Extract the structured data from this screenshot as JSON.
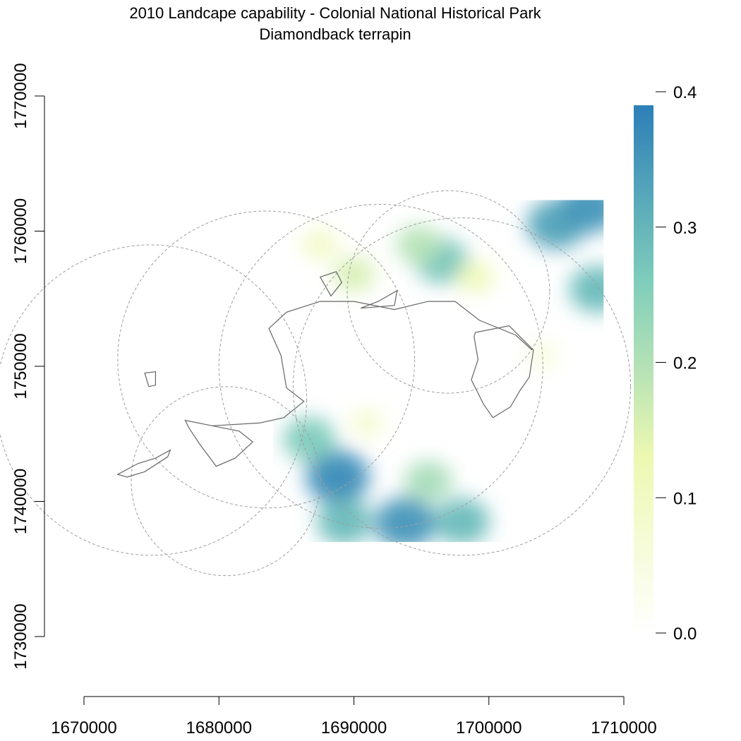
{
  "title": {
    "line1": "2010 Landcape capability - Colonial National Historical Park",
    "line2": "Diamondback terrapin"
  },
  "map_data": {
    "x_axis": {
      "min": 1670000,
      "max": 1710000,
      "ticks": [
        "1670000",
        "1680000",
        "1690000",
        "1700000",
        "1710000"
      ]
    },
    "y_axis": {
      "min": 1730000,
      "max": 1770000,
      "ticks": [
        "1730000",
        "1740000",
        "1750000",
        "1760000",
        "1770000"
      ]
    },
    "raster_extent": {
      "x": [
        1684000,
        1708500
      ],
      "y": [
        1737000,
        1762300
      ]
    },
    "legend": {
      "ticks": [
        "0.0",
        "0.1",
        "0.2",
        "0.3",
        "0.4"
      ],
      "min": 0.0,
      "max": 0.4,
      "top_value": 0.39,
      "colors": [
        "#ffffff",
        "#edf8b1",
        "#7fcdbb",
        "#2c7fb8"
      ]
    },
    "hotspots": [
      {
        "x": 1688800,
        "y": 1741800,
        "value": 0.38
      },
      {
        "x": 1686700,
        "y": 1744600,
        "value": 0.27
      },
      {
        "x": 1693800,
        "y": 1738400,
        "value": 0.36
      },
      {
        "x": 1689300,
        "y": 1738500,
        "value": 0.3
      },
      {
        "x": 1695500,
        "y": 1741500,
        "value": 0.22
      },
      {
        "x": 1698000,
        "y": 1738500,
        "value": 0.3
      },
      {
        "x": 1696500,
        "y": 1757800,
        "value": 0.28
      },
      {
        "x": 1694800,
        "y": 1759000,
        "value": 0.2
      },
      {
        "x": 1705000,
        "y": 1760500,
        "value": 0.34
      },
      {
        "x": 1707500,
        "y": 1761800,
        "value": 0.36
      },
      {
        "x": 1708000,
        "y": 1755700,
        "value": 0.3
      },
      {
        "x": 1690000,
        "y": 1756800,
        "value": 0.16
      },
      {
        "x": 1687500,
        "y": 1759000,
        "value": 0.1
      },
      {
        "x": 1699000,
        "y": 1756600,
        "value": 0.12
      },
      {
        "x": 1691000,
        "y": 1745800,
        "value": 0.08
      },
      {
        "x": 1704000,
        "y": 1750800,
        "value": 0.06
      }
    ],
    "buffer_circles": [
      {
        "x": 1675000,
        "y": 1747500,
        "r": 11500
      },
      {
        "x": 1698000,
        "y": 1748500,
        "r": 12500
      },
      {
        "x": 1683500,
        "y": 1750500,
        "r": 11000
      },
      {
        "x": 1692000,
        "y": 1750000,
        "r": 12000
      },
      {
        "x": 1680500,
        "y": 1741500,
        "r": 7000
      },
      {
        "x": 1697000,
        "y": 1755500,
        "r": 7500
      }
    ],
    "boundary_paths": [
      [
        [
          1672500,
          1742000
        ],
        [
          1674000,
          1742800
        ],
        [
          1675300,
          1743200
        ],
        [
          1676400,
          1743800
        ],
        [
          1676200,
          1743300
        ],
        [
          1674500,
          1742200
        ],
        [
          1673200,
          1741800
        ]
      ],
      [
        [
          1677500,
          1746000
        ],
        [
          1679500,
          1745600
        ],
        [
          1681500,
          1745200
        ],
        [
          1682500,
          1744400
        ],
        [
          1681200,
          1743200
        ],
        [
          1679800,
          1742600
        ],
        [
          1678600,
          1744200
        ],
        [
          1677800,
          1745400
        ]
      ],
      [
        [
          1679500,
          1745600
        ],
        [
          1683000,
          1745800
        ],
        [
          1684800,
          1746200
        ],
        [
          1686300,
          1747400
        ],
        [
          1685000,
          1748400
        ],
        [
          1684600,
          1750800
        ],
        [
          1683700,
          1752800
        ],
        [
          1685000,
          1754000
        ],
        [
          1687500,
          1754800
        ],
        [
          1690000,
          1754800
        ],
        [
          1693000,
          1754200
        ],
        [
          1695500,
          1754800
        ],
        [
          1697500,
          1754800
        ],
        [
          1699300,
          1753400
        ],
        [
          1702000,
          1752300
        ],
        [
          1703200,
          1751200
        ]
      ],
      [
        [
          1687500,
          1756600
        ],
        [
          1688700,
          1757000
        ],
        [
          1689100,
          1756200
        ],
        [
          1688300,
          1755200
        ]
      ],
      [
        [
          1690500,
          1754300
        ],
        [
          1691800,
          1754800
        ],
        [
          1693200,
          1755600
        ],
        [
          1693000,
          1754500
        ]
      ],
      [
        [
          1699000,
          1752500
        ],
        [
          1701500,
          1753000
        ],
        [
          1702300,
          1752200
        ],
        [
          1703300,
          1751200
        ],
        [
          1703000,
          1749200
        ],
        [
          1702300,
          1748200
        ],
        [
          1701600,
          1747000
        ],
        [
          1700300,
          1746200
        ],
        [
          1699600,
          1747200
        ],
        [
          1698700,
          1749000
        ],
        [
          1699200,
          1750500
        ],
        [
          1698900,
          1752200
        ]
      ],
      [
        [
          1674500,
          1749500
        ],
        [
          1675300,
          1749600
        ],
        [
          1675300,
          1748600
        ],
        [
          1674800,
          1748500
        ]
      ]
    ]
  }
}
